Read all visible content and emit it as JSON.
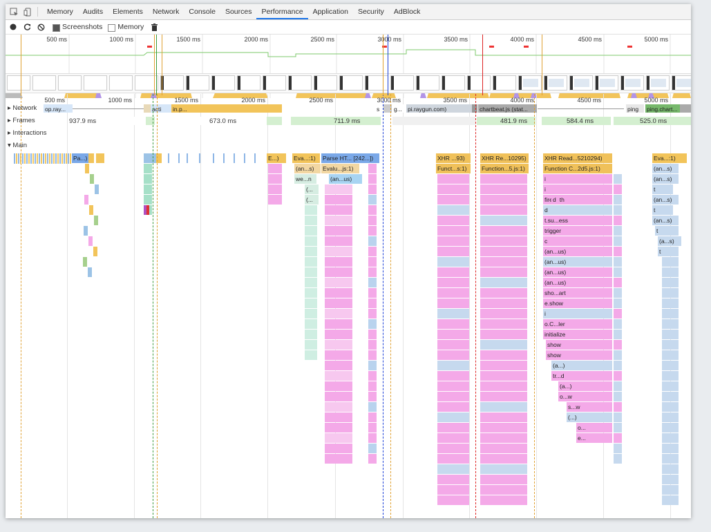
{
  "tabs": [
    {
      "label": "Memory"
    },
    {
      "label": "Audits"
    },
    {
      "label": "Elements"
    },
    {
      "label": "Network"
    },
    {
      "label": "Console"
    },
    {
      "label": "Sources"
    },
    {
      "label": "Performance",
      "active": true
    },
    {
      "label": "Application"
    },
    {
      "label": "Security"
    },
    {
      "label": "AdBlock"
    }
  ],
  "toolbar": {
    "record_icon": "record-icon",
    "reload_icon": "reload-icon",
    "clear_icon": "clear-icon",
    "screenshots_label": "Screenshots",
    "screenshots_checked": true,
    "memory_label": "Memory",
    "memory_checked": false,
    "trash_icon": "trash-icon"
  },
  "overview_ticks": [
    "500 ms",
    "1000 ms",
    "1500 ms",
    "2000 ms",
    "2500 ms",
    "3000 ms",
    "3500 ms",
    "4000 ms",
    "4500 ms",
    "5000 ms"
  ],
  "main_ticks": [
    "500 ms",
    "1000 ms",
    "1500 ms",
    "2000 ms",
    "2500 ms",
    "3000 ms",
    "3500 ms",
    "4000 ms",
    "4500 ms",
    "5000 ms"
  ],
  "tracks": {
    "network": "Network",
    "frames": "Frames",
    "interactions": "Interactions",
    "main": "Main"
  },
  "network_labels": [
    "op.ray...",
    "acti",
    "in.p...",
    "s",
    "g...",
    "pi.raygun.com)",
    "chartbeat.js (stat...",
    "ping",
    "ping.chart..."
  ],
  "frame_times": [
    "937.9 ms",
    "673.0 ms",
    "711.9 ms",
    "481.9 ms",
    "584.4 ms",
    "525.0 ms"
  ],
  "flame_labels": {
    "pa": "Pa...)",
    "e1": "E...)",
    "eva1": "Eva...:1)",
    "parse": "Parse HT... [242...])",
    "ans1": "(an...s)",
    "evalu": "Evalu...js:1)",
    "we": "we...n",
    "anus": "(an...us)",
    "p1": "(...",
    "p2": "(...",
    "xhr93": "XHR ...93)",
    "funct": "Funct...s:1)",
    "xhr10295": "XHR Re...10295)",
    "fn5": "Function...5.js:1)",
    "xhrread": "XHR Read...5210294)",
    "fnc2d5": "Function C...2d5.js:1)",
    "i1": "i",
    "i2": "i",
    "firewith": "fireWith",
    "d1": "d",
    "d2": "d",
    "tsuess": "t.su...ess",
    "trigger": "trigger",
    "c": "c",
    "anus1": "(an...us)",
    "anus2": "(an...us)",
    "anus3": "(an...us)",
    "anus4": "(an...us)",
    "shoart": "sho...art",
    "eshow": "e.show",
    "i3": "i",
    "ocler": "o.C...ler",
    "initialize": "initialize",
    "show1": "show",
    "show2": "show",
    "a1": "(a...)",
    "trd": "tr...d",
    "a2": "(a...)",
    "ow": "o...w",
    "sw": "s...w",
    "dots": "(...)",
    "o3": "o...",
    "e3": "e...",
    "eva2": "Eva...:1)",
    "ans_r1": "(an...s)",
    "ans_r2": "(an...s)",
    "t1": "t",
    "ans_r3": "(an...s)",
    "t2": "t",
    "ans_r4": "(an...s)",
    "t3": "t",
    "as_r5": "(a...s)",
    "t4": "t"
  },
  "colors": {
    "scripting": "#f2c45a",
    "rendering": "#b294e6",
    "painting": "#8ccb7a",
    "loading": "#6b9fe0",
    "function": "#f4a9e8",
    "parse": "#7aa8e8",
    "xhr": "#f0c15a",
    "selection": "#1a73e8"
  }
}
